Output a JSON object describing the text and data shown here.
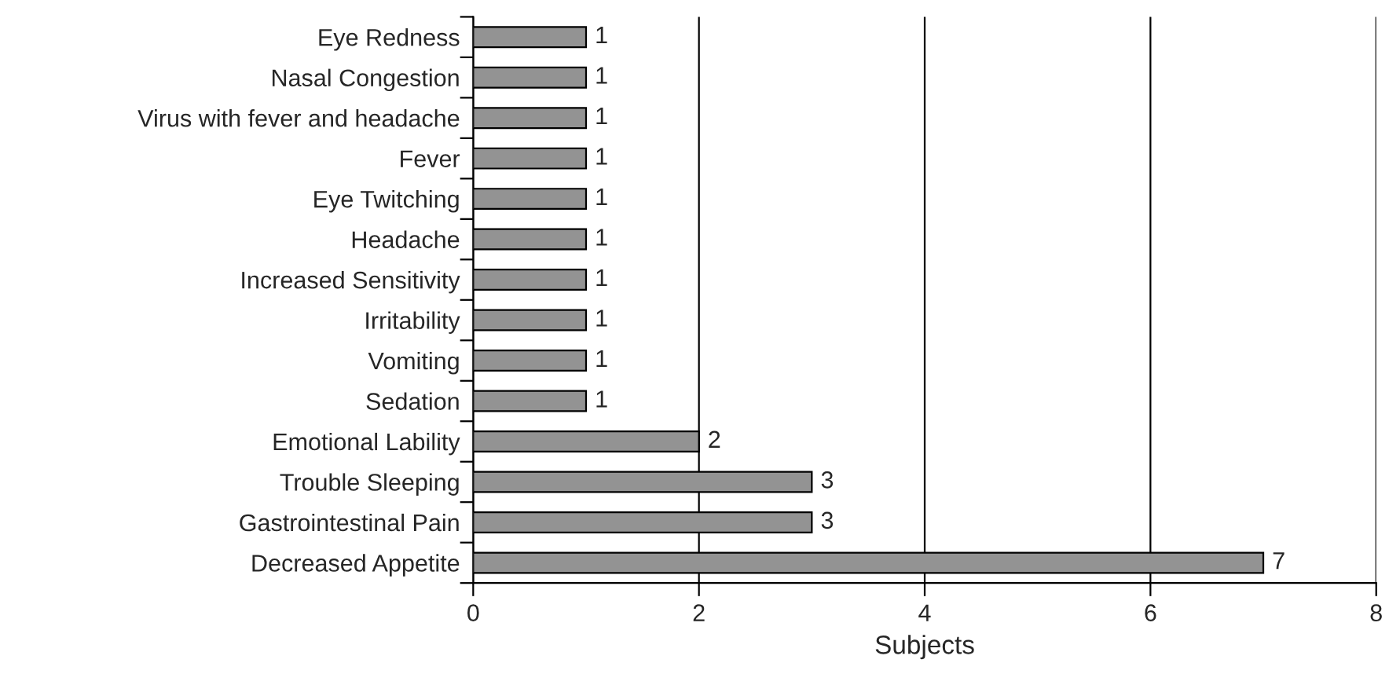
{
  "chart_data": {
    "type": "bar",
    "orientation": "horizontal",
    "xlabel": "Subjects",
    "categories": [
      "Eye Redness",
      "Nasal Congestion",
      "Virus with fever and headache",
      "Fever",
      "Eye Twitching",
      "Headache",
      "Increased Sensitivity",
      "Irritability",
      "Vomiting",
      "Sedation",
      "Emotional Lability",
      "Trouble Sleeping",
      "Gastrointestinal Pain",
      "Decreased Appetite"
    ],
    "values": [
      1,
      1,
      1,
      1,
      1,
      1,
      1,
      1,
      1,
      1,
      2,
      3,
      3,
      7
    ],
    "color": "#939393",
    "xlim": [
      0,
      8
    ],
    "xticks": [
      0,
      2,
      4,
      6,
      8
    ],
    "grid": "x",
    "data_labels": true
  }
}
